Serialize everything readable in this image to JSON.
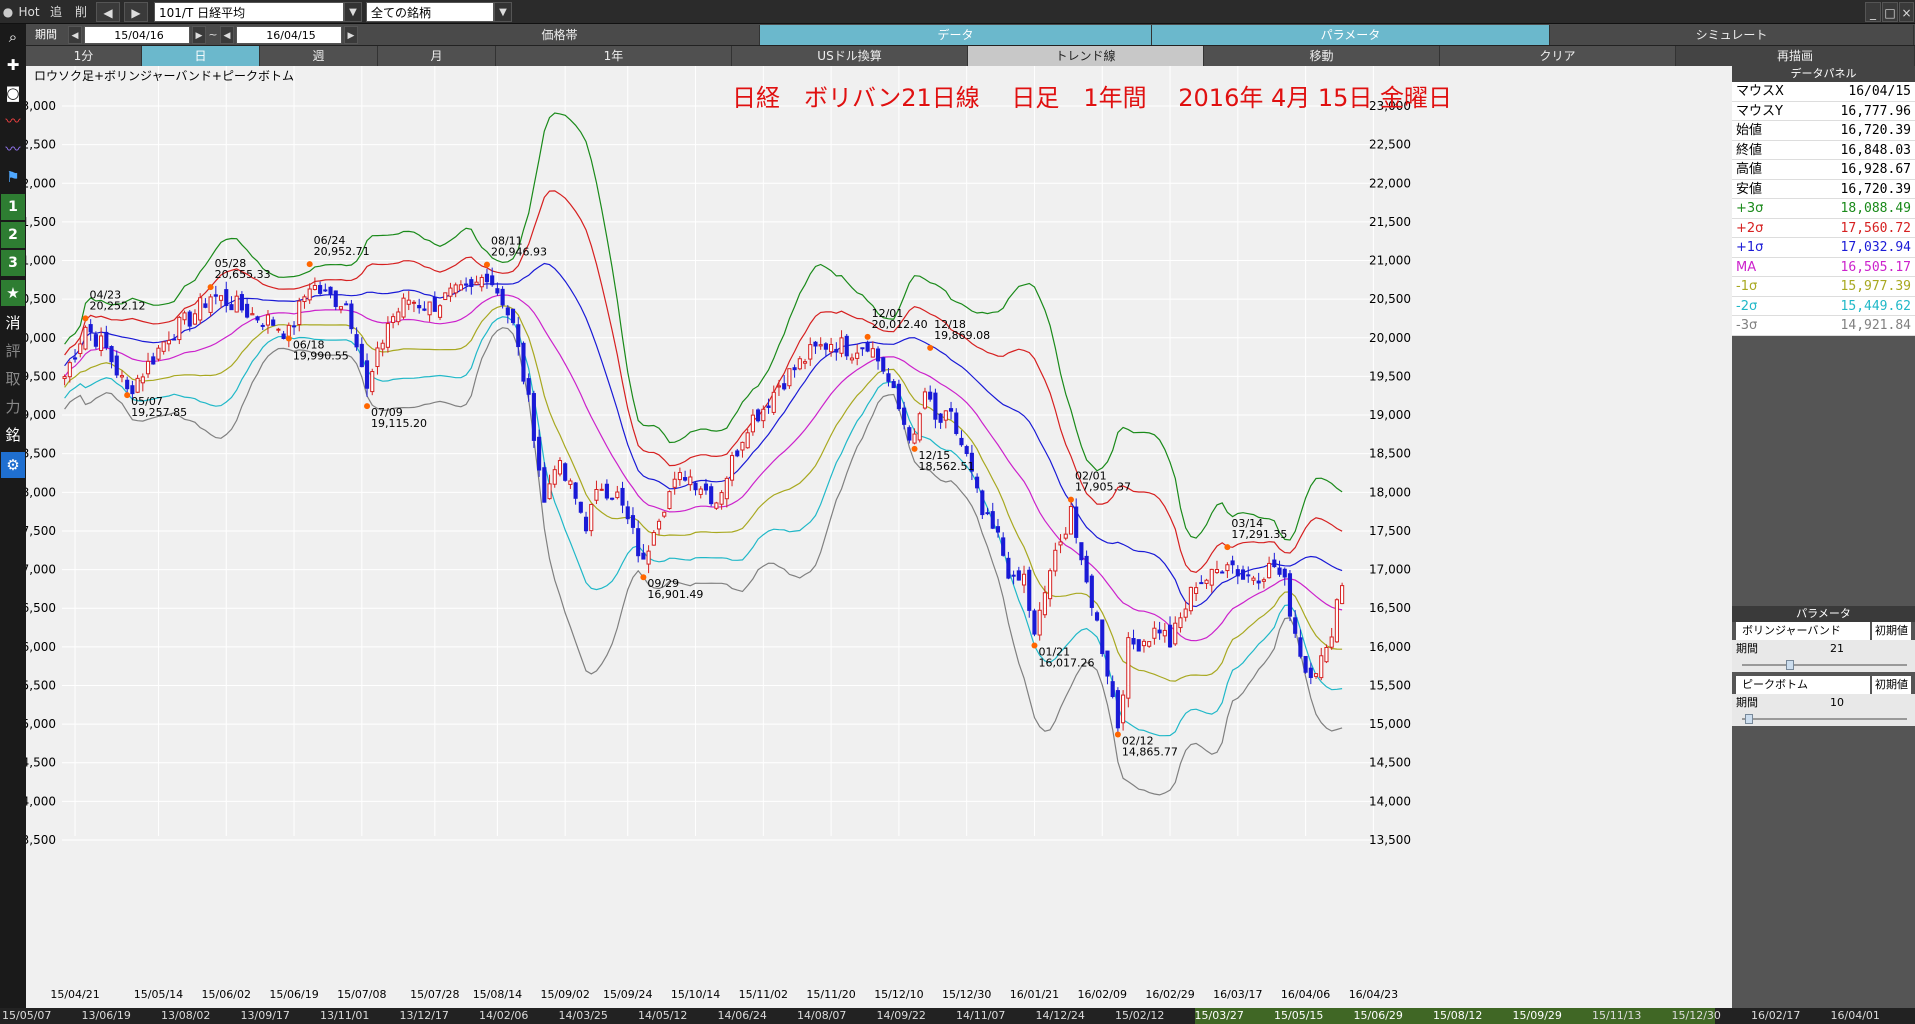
{
  "topbar": {
    "hot": "Hot",
    "trace": "追",
    "delete": "削",
    "symbol": "101/T 日経平均",
    "universe": "全ての銘柄"
  },
  "controls": {
    "period_label": "期間",
    "start": "15/04/16",
    "sep": "~",
    "end": "16/04/15",
    "hdr_price": "価格帯",
    "hdr_data": "データ",
    "hdr_param": "パラメータ",
    "hdr_sim": "シミュレート"
  },
  "tabs": [
    "1分",
    "日",
    "週",
    "月",
    "1年",
    "USドル換算",
    "トレンド線",
    "移動",
    "クリア",
    "再描画"
  ],
  "sidebar": [
    "消",
    "評",
    "取",
    "力",
    "銘"
  ],
  "chart_data": {
    "type": "candlestick+bollinger",
    "subtitle": "ロウソク足+ボリンジャーバンド+ピークボトム",
    "title": "日経　ボリバン21日線　 日足　1年間　 2016年 4月 15日 金曜日",
    "ylim": [
      13500,
      23000
    ],
    "yticks": [
      13500,
      14000,
      14500,
      15000,
      15500,
      16000,
      16500,
      17000,
      17500,
      18000,
      18500,
      19000,
      19500,
      20000,
      20500,
      21000,
      21500,
      22000,
      22500,
      23000
    ],
    "xticks": [
      {
        "label": "15/04/21",
        "i": 2
      },
      {
        "label": "15/05/14",
        "i": 18
      },
      {
        "label": "15/06/02",
        "i": 31
      },
      {
        "label": "15/06/19",
        "i": 44
      },
      {
        "label": "15/07/08",
        "i": 57
      },
      {
        "label": "15/07/28",
        "i": 71
      },
      {
        "label": "15/08/14",
        "i": 83
      },
      {
        "label": "15/09/02",
        "i": 96
      },
      {
        "label": "15/09/24",
        "i": 108
      },
      {
        "label": "15/10/14",
        "i": 121
      },
      {
        "label": "15/11/02",
        "i": 134
      },
      {
        "label": "15/11/20",
        "i": 147
      },
      {
        "label": "15/12/10",
        "i": 160
      },
      {
        "label": "15/12/30",
        "i": 173
      },
      {
        "label": "16/01/21",
        "i": 186
      },
      {
        "label": "16/02/09",
        "i": 199
      },
      {
        "label": "16/02/29",
        "i": 212
      },
      {
        "label": "16/03/17",
        "i": 225
      },
      {
        "label": "16/04/06",
        "i": 238
      },
      {
        "label": "16/04/23",
        "i": 251
      }
    ],
    "peaks": [
      {
        "date": "04/23",
        "value": "20,252.12",
        "i": 4,
        "y": 20252,
        "pos": "top"
      },
      {
        "date": "05/07",
        "value": "19,257.85",
        "i": 12,
        "y": 19258,
        "pos": "bottom"
      },
      {
        "date": "05/28",
        "value": "20,655.33",
        "i": 28,
        "y": 20655,
        "pos": "top"
      },
      {
        "date": "06/24",
        "value": "20,952.71",
        "i": 47,
        "y": 20953,
        "pos": "top"
      },
      {
        "date": "06/18",
        "value": "19,990.55",
        "i": 43,
        "y": 19991,
        "pos": "bottom"
      },
      {
        "date": "07/09",
        "value": "19,115.20",
        "i": 58,
        "y": 19115,
        "pos": "bottom"
      },
      {
        "date": "08/11",
        "value": "20,946.93",
        "i": 81,
        "y": 20947,
        "pos": "top"
      },
      {
        "date": "09/29",
        "value": "16,901.49",
        "i": 111,
        "y": 16901,
        "pos": "bottom"
      },
      {
        "date": "12/01",
        "value": "20,012.40",
        "i": 154,
        "y": 20012,
        "pos": "top"
      },
      {
        "date": "12/18",
        "value": "19,869.08",
        "i": 166,
        "y": 19869,
        "pos": "top"
      },
      {
        "date": "12/15",
        "value": "18,562.51",
        "i": 163,
        "y": 18563,
        "pos": "bottom"
      },
      {
        "date": "02/01",
        "value": "17,905.37",
        "i": 193,
        "y": 17905,
        "pos": "top"
      },
      {
        "date": "01/21",
        "value": "16,017.26",
        "i": 186,
        "y": 16017,
        "pos": "bottom"
      },
      {
        "date": "02/12",
        "value": "14,865.77",
        "i": 202,
        "y": 14866,
        "pos": "bottom"
      },
      {
        "date": "03/14",
        "value": "17,291.35",
        "i": 223,
        "y": 17291,
        "pos": "top"
      }
    ],
    "close_keys": [
      [
        0,
        19500
      ],
      [
        4,
        20150
      ],
      [
        8,
        19850
      ],
      [
        12,
        19300
      ],
      [
        16,
        19650
      ],
      [
        20,
        20050
      ],
      [
        24,
        20250
      ],
      [
        28,
        20550
      ],
      [
        32,
        20450
      ],
      [
        36,
        20300
      ],
      [
        40,
        20200
      ],
      [
        43,
        20050
      ],
      [
        47,
        20700
      ],
      [
        50,
        20550
      ],
      [
        54,
        20450
      ],
      [
        56,
        20000
      ],
      [
        58,
        19300
      ],
      [
        62,
        20200
      ],
      [
        66,
        20500
      ],
      [
        70,
        20400
      ],
      [
        74,
        20550
      ],
      [
        78,
        20600
      ],
      [
        81,
        20850
      ],
      [
        84,
        20500
      ],
      [
        86,
        20150
      ],
      [
        88,
        19500
      ],
      [
        90,
        18800
      ],
      [
        92,
        17850
      ],
      [
        94,
        18400
      ],
      [
        97,
        18050
      ],
      [
        100,
        17600
      ],
      [
        103,
        18100
      ],
      [
        106,
        17950
      ],
      [
        109,
        17450
      ],
      [
        111,
        17050
      ],
      [
        113,
        17600
      ],
      [
        116,
        18000
      ],
      [
        119,
        18250
      ],
      [
        122,
        18100
      ],
      [
        125,
        17900
      ],
      [
        128,
        18400
      ],
      [
        131,
        18900
      ],
      [
        134,
        19100
      ],
      [
        137,
        19400
      ],
      [
        140,
        19600
      ],
      [
        143,
        19800
      ],
      [
        147,
        19950
      ],
      [
        151,
        19850
      ],
      [
        154,
        19950
      ],
      [
        157,
        19600
      ],
      [
        159,
        19250
      ],
      [
        161,
        18900
      ],
      [
        163,
        18650
      ],
      [
        165,
        19300
      ],
      [
        167,
        18900
      ],
      [
        170,
        18950
      ],
      [
        173,
        18450
      ],
      [
        176,
        17700
      ],
      [
        179,
        17400
      ],
      [
        182,
        16800
      ],
      [
        184,
        16900
      ],
      [
        186,
        16100
      ],
      [
        189,
        17000
      ],
      [
        191,
        17300
      ],
      [
        193,
        17850
      ],
      [
        195,
        17000
      ],
      [
        197,
        16600
      ],
      [
        200,
        15700
      ],
      [
        202,
        15000
      ],
      [
        204,
        16000
      ],
      [
        207,
        16100
      ],
      [
        210,
        16250
      ],
      [
        212,
        16050
      ],
      [
        214,
        16350
      ],
      [
        217,
        16850
      ],
      [
        220,
        16900
      ],
      [
        223,
        17150
      ],
      [
        226,
        16900
      ],
      [
        229,
        16950
      ],
      [
        232,
        17050
      ],
      [
        234,
        16800
      ],
      [
        236,
        16200
      ],
      [
        238,
        15700
      ],
      [
        240,
        15750
      ],
      [
        242,
        15900
      ],
      [
        244,
        16600
      ],
      [
        245,
        16850
      ]
    ],
    "bands_labels": [
      "+3σ",
      "+2σ",
      "+1σ",
      "MA",
      "-1σ",
      "-2σ",
      "-3σ"
    ],
    "colors": {
      "up": "#d62020",
      "down": "#1a1ad6",
      "p3": "#1a8a1a",
      "p2": "#d62020",
      "p1": "#1a1ad6",
      "ma": "#cc22cc",
      "m1": "#a8a820",
      "m2": "#20b8c8",
      "m3": "#808080",
      "title": "#e01010",
      "peak": "#ff6600",
      "grid": "#ffffff",
      "bg": "#f0f0f0"
    }
  },
  "data_panel": {
    "title": "データパネル",
    "rows": [
      {
        "label": "マウスX",
        "value": "16/04/15",
        "color": "#000000"
      },
      {
        "label": "マウスY",
        "value": "16,777.96",
        "color": "#000000"
      },
      {
        "label": "始値",
        "value": "16,720.39",
        "color": "#000000"
      },
      {
        "label": "終値",
        "value": "16,848.03",
        "color": "#000000"
      },
      {
        "label": "高値",
        "value": "16,928.67",
        "color": "#000000"
      },
      {
        "label": "安値",
        "value": "16,720.39",
        "color": "#000000"
      },
      {
        "label": "+3σ",
        "value": "18,088.49",
        "color": "#1a8a1a"
      },
      {
        "label": "+2σ",
        "value": "17,560.72",
        "color": "#d62020"
      },
      {
        "label": "+1σ",
        "value": "17,032.94",
        "color": "#1a1ad6"
      },
      {
        "label": "MA",
        "value": "16,505.17",
        "color": "#cc22cc"
      },
      {
        "label": "-1σ",
        "value": "15,977.39",
        "color": "#a8a820"
      },
      {
        "label": "-2σ",
        "value": "15,449.62",
        "color": "#20b8c8"
      },
      {
        "label": "-3σ",
        "value": "14,921.84",
        "color": "#808080"
      }
    ]
  },
  "param_panel": {
    "title": "パラメータ",
    "bollinger": "ボリンジャーバンド",
    "reset": "初期値",
    "period": "期間",
    "bollinger_period": "21",
    "bollinger_period_fraction": 0.28,
    "peak": "ピークボトム",
    "peak_period": "10",
    "peak_period_fraction": 0.02
  },
  "bottom_dates": [
    "15/05/07",
    "13/06/19",
    "13/08/02",
    "13/09/17",
    "13/11/01",
    "13/12/17",
    "14/02/06",
    "14/03/25",
    "14/05/12",
    "14/06/24",
    "14/08/07",
    "14/09/22",
    "14/11/07",
    "14/12/24",
    "15/02/12",
    "15/03/27",
    "15/05/15",
    "15/06/29",
    "15/08/12",
    "15/09/29",
    "15/11/13",
    "15/12/30",
    "16/02/17",
    "16/04/01"
  ]
}
